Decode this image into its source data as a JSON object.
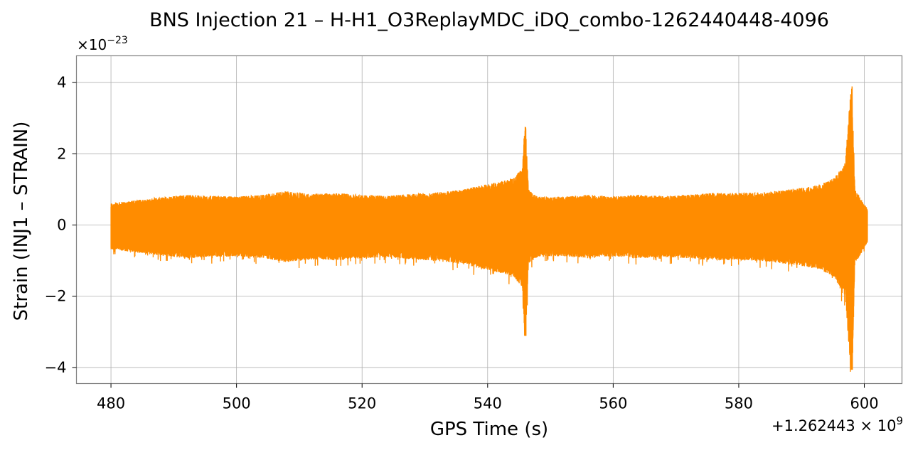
{
  "chart_data": {
    "type": "line",
    "title": "BNS Injection 21 – H-H1_O3ReplayMDC_iDQ_combo-1262440448-4096",
    "xlabel": "GPS Time (s)",
    "ylabel": "Strain (INJ1 – STRAIN)",
    "x_offset_label": "+1.262443",
    "x_offset_exponent": "9",
    "y_multiplier_label": "×10",
    "y_multiplier_exponent": "−23",
    "xlim": [
      474.5,
      606
    ],
    "ylim": [
      -4.45,
      4.75
    ],
    "x_ticks": [
      480,
      500,
      520,
      540,
      560,
      580,
      600
    ],
    "x_tick_labels": [
      "480",
      "500",
      "520",
      "540",
      "560",
      "580",
      "600"
    ],
    "y_ticks": [
      -4,
      -2,
      0,
      2,
      4
    ],
    "y_tick_labels": [
      "−4",
      "−2",
      "0",
      "2",
      "4"
    ],
    "grid": true,
    "line_color": "#ff8c00",
    "series": [
      {
        "x_range": [
          480,
          600.5
        ],
        "envelope_points": [
          [
            480,
            0.62
          ],
          [
            484,
            0.7
          ],
          [
            488,
            0.78
          ],
          [
            492,
            0.85
          ],
          [
            496,
            0.82
          ],
          [
            500,
            0.8
          ],
          [
            504,
            0.85
          ],
          [
            508,
            0.95
          ],
          [
            512,
            0.88
          ],
          [
            516,
            0.9
          ],
          [
            520,
            0.85
          ],
          [
            524,
            0.82
          ],
          [
            528,
            0.88
          ],
          [
            532,
            0.92
          ],
          [
            536,
            1.0
          ],
          [
            540,
            1.15
          ],
          [
            544,
            1.3
          ],
          [
            545.5,
            1.6
          ],
          [
            546,
            3.05
          ],
          [
            546.5,
            1.0
          ],
          [
            548,
            0.8
          ],
          [
            552,
            0.8
          ],
          [
            556,
            0.85
          ],
          [
            560,
            0.8
          ],
          [
            564,
            0.85
          ],
          [
            568,
            0.82
          ],
          [
            572,
            0.85
          ],
          [
            576,
            0.9
          ],
          [
            580,
            0.9
          ],
          [
            584,
            0.92
          ],
          [
            588,
            1.0
          ],
          [
            592,
            1.1
          ],
          [
            595,
            1.3
          ],
          [
            597,
            1.8
          ],
          [
            598,
            4.35
          ],
          [
            598.5,
            1.0
          ],
          [
            600.5,
            0.45
          ]
        ],
        "neg_spikes": [
          [
            546,
            -3.1
          ],
          [
            598,
            -4.05
          ]
        ]
      }
    ]
  }
}
